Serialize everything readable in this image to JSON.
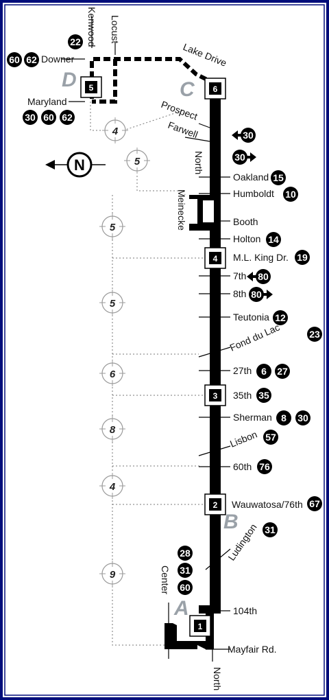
{
  "map": {
    "border_color": "#000c7a",
    "route_color": "#000000",
    "segment_letter_color": "#9aa1a8",
    "north_label": "N",
    "segments": [
      "A",
      "B",
      "C",
      "D"
    ],
    "stations": [
      "1",
      "2",
      "3",
      "4",
      "5",
      "6"
    ],
    "streets": {
      "kenwood": "Kenwood",
      "locust": "Locust",
      "downer": "Downer",
      "maryland": "Maryland",
      "lake_drive": "Lake Drive",
      "prospect": "Prospect",
      "farwell": "Farwell",
      "north_top": "North",
      "meinecke": "Meinecke",
      "oakland": "Oakland",
      "humboldt": "Humboldt",
      "booth": "Booth",
      "holton": "Holton",
      "mlk": "M.L. King Dr.",
      "seventh": "7th",
      "eighth": "8th",
      "teutonia": "Teutonia",
      "fond_du_lac": "Fond du Lac",
      "twenty_seventh": "27th",
      "thirty_fifth": "35th",
      "sherman": "Sherman",
      "lisbon": "Lisbon",
      "sixtieth": "60th",
      "wauwatosa": "Wauwatosa/76th",
      "ludington": "Ludington",
      "center": "Center",
      "hundred_fourth": "104th",
      "mayfair": "Mayfair Rd.",
      "north_bottom": "North"
    },
    "connecting_routes": {
      "downer_top": "22",
      "downer_a": "60",
      "downer_b": "62",
      "maryland_a": "30",
      "maryland_b": "60",
      "maryland_c": "62",
      "prospect": "30",
      "farwell": "30",
      "oakland": "15",
      "humboldt": "10",
      "holton": "14",
      "mlk": "19",
      "seventh": "80",
      "eighth": "80",
      "teutonia": "12",
      "fond_du_lac": "23",
      "twenty_seventh_a": "6",
      "twenty_seventh_b": "27",
      "thirty_fifth": "35",
      "sherman_a": "8",
      "sherman_b": "30",
      "lisbon": "57",
      "sixtieth": "76",
      "wauwatosa": "67",
      "ludington": "31",
      "center_a": "28",
      "center_b": "31",
      "center_c": "60"
    },
    "travel_times": [
      "4",
      "5",
      "5",
      "5",
      "6",
      "8",
      "4",
      "9"
    ]
  }
}
